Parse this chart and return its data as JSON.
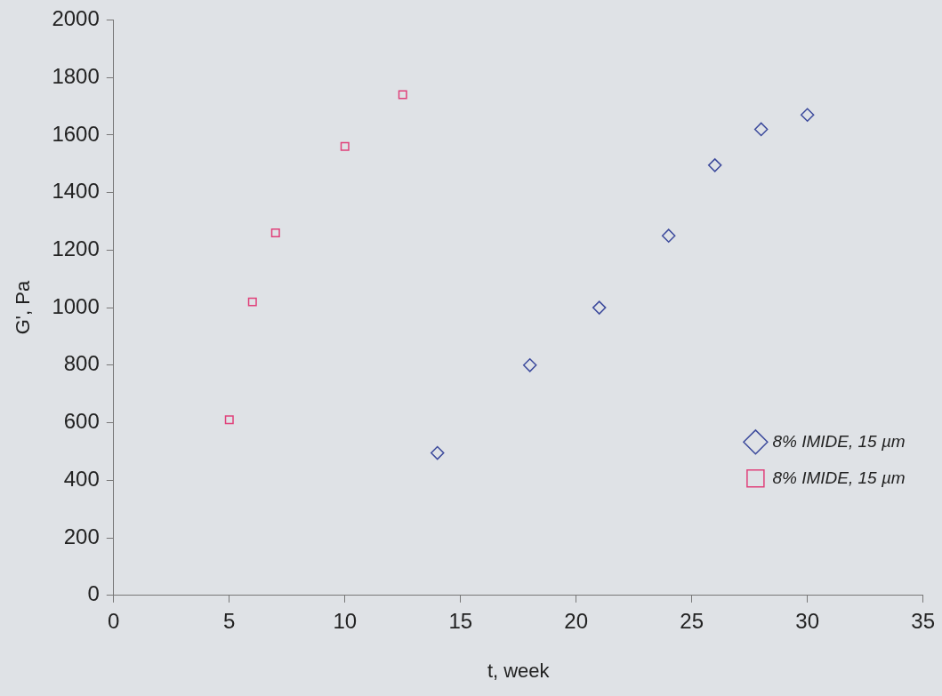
{
  "chart_data": {
    "type": "scatter",
    "xlabel": "t, week",
    "ylabel": "G', Pa",
    "xlim": [
      0,
      35
    ],
    "xticks": [
      0,
      5,
      10,
      15,
      20,
      25,
      30,
      35
    ],
    "ylim": [
      0,
      2000
    ],
    "yticks": [
      0,
      200,
      400,
      600,
      800,
      1000,
      1200,
      1400,
      1600,
      1800,
      2000
    ],
    "grid": false,
    "legend": "bottom right",
    "series": [
      {
        "name": "8% IMIDE, 15 µm",
        "color": "#3c4a9c",
        "marker": "diamond",
        "x": [
          14,
          18,
          21,
          24,
          26,
          28,
          30
        ],
        "values": [
          495,
          800,
          1000,
          1250,
          1495,
          1620,
          1670
        ]
      },
      {
        "name": "8% IMIDE, 15 µm",
        "color": "#e0407a",
        "marker": "square",
        "x": [
          5,
          6,
          7,
          10,
          12.5
        ],
        "values": [
          610,
          1020,
          1260,
          1560,
          1740
        ]
      }
    ]
  }
}
